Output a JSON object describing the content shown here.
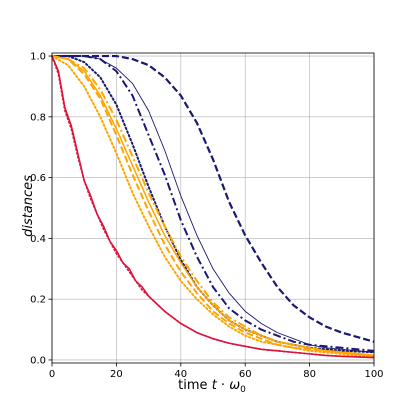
{
  "chart_data": {
    "type": "line",
    "title": "",
    "xlabel_prefix": "time ",
    "xlabel_var_t": "t",
    "xlabel_dot": " · ",
    "xlabel_omega": "ω",
    "xlabel_sub": "0",
    "ylabel": "distances",
    "xlim": [
      0,
      100
    ],
    "ylim": [
      -0.01,
      1.01
    ],
    "xticks": [
      0,
      20,
      40,
      60,
      80,
      100
    ],
    "yticks": [
      0.0,
      0.2,
      0.4,
      0.6,
      0.8,
      1.0
    ],
    "xtick_labels": [
      "0",
      "20",
      "40",
      "60",
      "80",
      "100"
    ],
    "ytick_labels": [
      "0.0",
      "0.2",
      "0.4",
      "0.6",
      "0.8",
      "1.0"
    ],
    "grid": true,
    "colors": {
      "navy": "#191970",
      "orange": "#ffa500",
      "crimson": "#dc143c",
      "grid": "#b0b0b0"
    },
    "series": [
      {
        "color": "navy",
        "style": "dashed",
        "width": 2.2,
        "x": [
          0,
          10,
          15,
          20,
          25,
          30,
          35,
          40,
          45,
          50,
          55,
          60,
          65,
          70,
          75,
          80,
          85,
          90,
          95,
          100
        ],
        "y": [
          1.0,
          1.0,
          1.0,
          1.0,
          0.99,
          0.97,
          0.93,
          0.87,
          0.78,
          0.66,
          0.52,
          0.41,
          0.32,
          0.24,
          0.18,
          0.14,
          0.11,
          0.09,
          0.075,
          0.06
        ]
      },
      {
        "color": "navy",
        "style": "dashdot",
        "width": 2.0,
        "x": [
          0,
          5,
          10,
          15,
          20,
          25,
          30,
          35,
          40,
          45,
          50,
          55,
          60,
          65,
          70,
          75,
          80,
          85,
          90,
          95,
          100
        ],
        "y": [
          1.0,
          1.0,
          1.0,
          0.99,
          0.95,
          0.87,
          0.74,
          0.61,
          0.46,
          0.34,
          0.24,
          0.17,
          0.13,
          0.1,
          0.08,
          0.06,
          0.05,
          0.045,
          0.04,
          0.035,
          0.03
        ]
      },
      {
        "color": "navy",
        "style": "solid",
        "width": 0.9,
        "x": [
          0,
          5,
          10,
          15,
          20,
          25,
          30,
          35,
          40,
          45,
          50,
          55,
          60,
          65,
          70,
          75,
          80,
          85,
          90,
          95,
          100
        ],
        "y": [
          1.0,
          1.0,
          1.0,
          0.99,
          0.96,
          0.91,
          0.82,
          0.69,
          0.54,
          0.41,
          0.3,
          0.22,
          0.16,
          0.12,
          0.09,
          0.07,
          0.05,
          0.04,
          0.035,
          0.03,
          0.025
        ]
      },
      {
        "color": "navy",
        "style": "dotted",
        "width": 2.0,
        "x": [
          0,
          5,
          10,
          15,
          20,
          25,
          30,
          35,
          40,
          45,
          50,
          55,
          60,
          65,
          70,
          75,
          80,
          85,
          90,
          95,
          100
        ],
        "y": [
          1.0,
          1.0,
          0.98,
          0.93,
          0.84,
          0.71,
          0.57,
          0.44,
          0.33,
          0.24,
          0.18,
          0.13,
          0.1,
          0.08,
          0.06,
          0.05,
          0.04,
          0.035,
          0.03,
          0.028,
          0.025
        ]
      },
      {
        "color": "orange",
        "style": "solid",
        "width": 1.5,
        "x": [
          0,
          5,
          10,
          15,
          20,
          25,
          30,
          35,
          40,
          45,
          50,
          55,
          60,
          65,
          70,
          75,
          80,
          85,
          90,
          95,
          100
        ],
        "y": [
          1.0,
          0.99,
          0.95,
          0.87,
          0.76,
          0.64,
          0.52,
          0.41,
          0.32,
          0.24,
          0.18,
          0.13,
          0.1,
          0.08,
          0.06,
          0.05,
          0.04,
          0.03,
          0.025,
          0.02,
          0.015
        ]
      },
      {
        "color": "orange",
        "style": "dashed",
        "width": 2.0,
        "x": [
          0,
          5,
          10,
          15,
          20,
          25,
          30,
          35,
          40,
          45,
          50,
          55,
          60,
          65,
          70,
          75,
          80,
          85,
          90,
          95,
          100
        ],
        "y": [
          1.0,
          0.99,
          0.94,
          0.86,
          0.74,
          0.61,
          0.49,
          0.38,
          0.29,
          0.22,
          0.16,
          0.12,
          0.09,
          0.07,
          0.05,
          0.04,
          0.035,
          0.03,
          0.025,
          0.02,
          0.015
        ]
      },
      {
        "color": "orange",
        "style": "dashdot",
        "width": 2.0,
        "x": [
          0,
          5,
          10,
          15,
          20,
          25,
          30,
          35,
          40,
          45,
          50,
          55,
          60,
          65,
          70,
          75,
          80,
          85,
          90,
          95,
          100
        ],
        "y": [
          1.0,
          0.99,
          0.96,
          0.89,
          0.79,
          0.67,
          0.55,
          0.44,
          0.34,
          0.26,
          0.19,
          0.14,
          0.11,
          0.08,
          0.06,
          0.05,
          0.04,
          0.03,
          0.025,
          0.02,
          0.015
        ]
      },
      {
        "color": "orange",
        "style": "dotted",
        "width": 2.0,
        "x": [
          0,
          5,
          10,
          15,
          20,
          25,
          30,
          35,
          40,
          45,
          50,
          55,
          60,
          65,
          70,
          75,
          80,
          85,
          90,
          95,
          100
        ],
        "y": [
          1.0,
          0.97,
          0.9,
          0.8,
          0.68,
          0.55,
          0.44,
          0.34,
          0.26,
          0.2,
          0.15,
          0.11,
          0.08,
          0.06,
          0.05,
          0.04,
          0.03,
          0.025,
          0.02,
          0.015,
          0.012
        ]
      },
      {
        "color": "crimson",
        "style": "solid",
        "width": 1.6,
        "x": [
          0,
          2,
          4,
          6,
          8,
          10,
          12,
          14,
          16,
          18,
          20,
          22,
          24,
          26,
          28,
          30,
          35,
          40,
          45,
          50,
          55,
          60,
          65,
          70,
          75,
          80,
          85,
          90,
          95,
          100
        ],
        "y": [
          1.0,
          0.95,
          0.83,
          0.77,
          0.68,
          0.59,
          0.54,
          0.48,
          0.44,
          0.39,
          0.36,
          0.32,
          0.3,
          0.26,
          0.24,
          0.21,
          0.16,
          0.12,
          0.09,
          0.07,
          0.055,
          0.045,
          0.035,
          0.03,
          0.025,
          0.02,
          0.015,
          0.012,
          0.01,
          0.008
        ]
      },
      {
        "color": "crimson",
        "style": "dotted",
        "width": 1.6,
        "x": [
          0,
          2,
          4,
          6,
          8,
          10,
          12,
          14,
          16,
          18,
          20,
          22,
          24,
          26,
          28,
          30,
          35,
          40,
          45,
          50,
          55,
          60,
          65,
          70,
          75,
          80,
          85,
          90,
          95,
          100
        ],
        "y": [
          1.0,
          0.94,
          0.82,
          0.76,
          0.67,
          0.59,
          0.53,
          0.48,
          0.43,
          0.39,
          0.35,
          0.32,
          0.29,
          0.26,
          0.23,
          0.21,
          0.16,
          0.12,
          0.09,
          0.07,
          0.055,
          0.045,
          0.035,
          0.03,
          0.025,
          0.02,
          0.015,
          0.012,
          0.01,
          0.008
        ]
      }
    ]
  }
}
